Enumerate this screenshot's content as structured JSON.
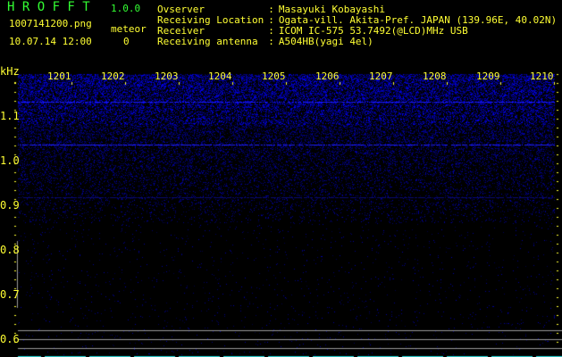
{
  "header": {
    "app_title": "H R O F F T",
    "version": "1.0.0",
    "filename": "1007141200.png",
    "datetime": "10.07.14 12:00",
    "meteor_label": "meteor",
    "meteor_count": "0"
  },
  "info": [
    {
      "label": "Ovserver",
      "value": "Masayuki Kobayashi"
    },
    {
      "label": "Receiving Location",
      "value": "Ogata-vill. Akita-Pref. JAPAN (139.96E, 40.02N)"
    },
    {
      "label": "Receiver",
      "value": "ICOM IC-575 53.7492(@LCD)MHz USB"
    },
    {
      "label": "Receiving antenna",
      "value": "A504HB(yagi 4el)"
    }
  ],
  "spectrogram": {
    "y_unit": "kHz",
    "y_ticks": [
      "1.1",
      "1.0",
      "0.9",
      "0.8",
      "0.7",
      "0.6"
    ],
    "x_ticks": [
      "1201",
      "1202",
      "1203",
      "1204",
      "1205",
      "1206",
      "1207",
      "1208",
      "1209",
      "1210"
    ],
    "colors": {
      "text": "#ffff33",
      "title": "#33ff33",
      "signal": "#2020ff",
      "marker": "#999999",
      "baseline": "#33dddd"
    }
  }
}
